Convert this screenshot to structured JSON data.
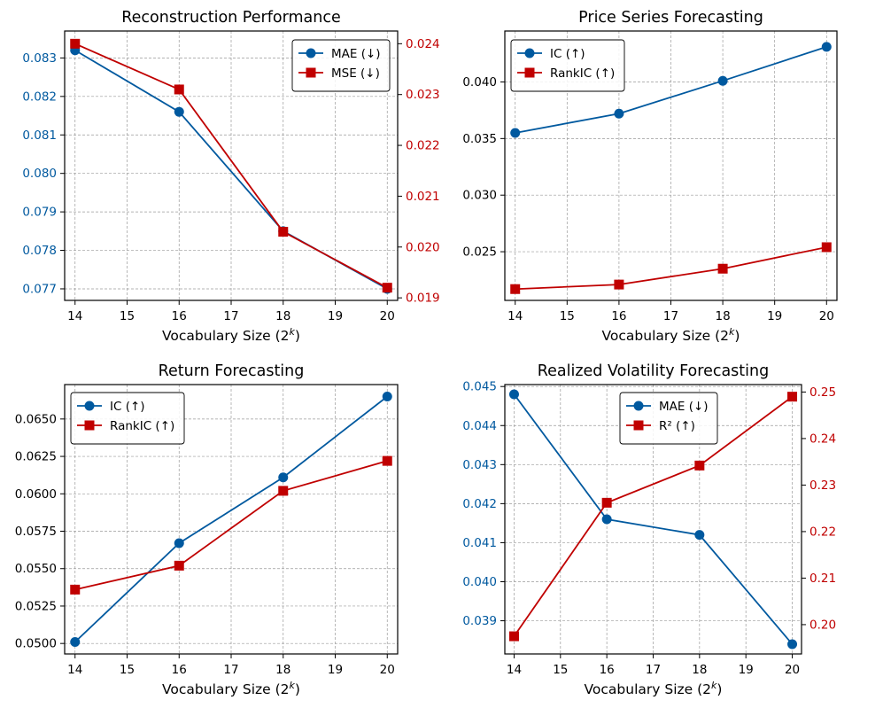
{
  "colors": {
    "blue": "#00599f",
    "red": "#c00000",
    "grid": "#9a9a9a",
    "axis": "#000000"
  },
  "chart_data": [
    {
      "type": "line",
      "title": "Reconstruction Performance",
      "xlabel": "Vocabulary Size (2",
      "xlabel_sup": "k",
      "xlabel_tail": ")",
      "x": [
        14,
        16,
        18,
        20
      ],
      "xlim": [
        13.8,
        20.2
      ],
      "xticks": [
        14,
        15,
        16,
        17,
        18,
        19,
        20
      ],
      "ylim": [
        0.0767,
        0.0837
      ],
      "yticks": [
        "0.077",
        "0.078",
        "0.079",
        "0.080",
        "0.081",
        "0.082",
        "0.083"
      ],
      "y2lim": [
        0.01895,
        0.02425
      ],
      "y2ticks": [
        "0.019",
        "0.020",
        "0.021",
        "0.022",
        "0.023",
        "0.024"
      ],
      "grid": true,
      "legend": "top-right",
      "series": [
        {
          "name": "MAE (↓)",
          "marker": "circle",
          "color": "blue",
          "axis": "left",
          "values": [
            0.0832,
            0.0816,
            0.0785,
            0.077
          ]
        },
        {
          "name": "MSE (↓)",
          "marker": "square",
          "color": "red",
          "axis": "right",
          "values": [
            0.024,
            0.0231,
            0.0203,
            0.0192
          ]
        }
      ]
    },
    {
      "type": "line",
      "title": "Price Series Forecasting",
      "xlabel": "Vocabulary Size (2",
      "xlabel_sup": "k",
      "xlabel_tail": ")",
      "x": [
        14,
        16,
        18,
        20
      ],
      "xlim": [
        13.8,
        20.2
      ],
      "xticks": [
        14,
        15,
        16,
        17,
        18,
        19,
        20
      ],
      "ylim": [
        0.0207,
        0.0445
      ],
      "yticks": [
        "0.025",
        "0.030",
        "0.035",
        "0.040"
      ],
      "grid": true,
      "legend": "top-left",
      "series": [
        {
          "name": "IC (↑)",
          "marker": "circle",
          "color": "blue",
          "axis": "left",
          "values": [
            0.0355,
            0.0372,
            0.0401,
            0.0431
          ]
        },
        {
          "name": "RankIC (↑)",
          "marker": "square",
          "color": "red",
          "axis": "left",
          "values": [
            0.0217,
            0.0221,
            0.0235,
            0.0254
          ]
        }
      ]
    },
    {
      "type": "line",
      "title": "Return Forecasting",
      "xlabel": "Vocabulary Size (2",
      "xlabel_sup": "k",
      "xlabel_tail": ")",
      "x": [
        14,
        16,
        18,
        20
      ],
      "xlim": [
        13.8,
        20.2
      ],
      "xticks": [
        14,
        15,
        16,
        17,
        18,
        19,
        20
      ],
      "ylim": [
        0.0493,
        0.0673
      ],
      "yticks": [
        "0.0500",
        "0.0525",
        "0.0550",
        "0.0575",
        "0.0600",
        "0.0625",
        "0.0650"
      ],
      "grid": true,
      "legend": "top-left",
      "series": [
        {
          "name": "IC (↑)",
          "marker": "circle",
          "color": "blue",
          "axis": "left",
          "values": [
            0.0501,
            0.0567,
            0.0611,
            0.0665
          ]
        },
        {
          "name": "RankIC (↑)",
          "marker": "square",
          "color": "red",
          "axis": "left",
          "values": [
            0.0536,
            0.0552,
            0.0602,
            0.0622
          ]
        }
      ]
    },
    {
      "type": "line",
      "title": "Realized Volatility Forecasting",
      "xlabel": "Vocabulary Size (2",
      "xlabel_sup": "k",
      "xlabel_tail": ")",
      "x": [
        14,
        16,
        18,
        20
      ],
      "xlim": [
        13.8,
        20.2
      ],
      "xticks": [
        14,
        15,
        16,
        17,
        18,
        19,
        20
      ],
      "ylim": [
        0.03815,
        0.04505
      ],
      "yticks": [
        "0.039",
        "0.040",
        "0.041",
        "0.042",
        "0.043",
        "0.044",
        "0.045"
      ],
      "y2lim": [
        0.1937,
        0.2516
      ],
      "y2ticks": [
        "0.20",
        "0.21",
        "0.22",
        "0.23",
        "0.24",
        "0.25"
      ],
      "grid": true,
      "legend": "top-center",
      "series": [
        {
          "name": "MAE (↓)",
          "marker": "circle",
          "color": "blue",
          "axis": "left",
          "values": [
            0.0448,
            0.0416,
            0.0412,
            0.0384
          ]
        },
        {
          "name": "R² (↑)",
          "marker": "square",
          "color": "red",
          "axis": "right",
          "values": [
            0.1975,
            0.2262,
            0.2342,
            0.249
          ]
        }
      ]
    }
  ]
}
